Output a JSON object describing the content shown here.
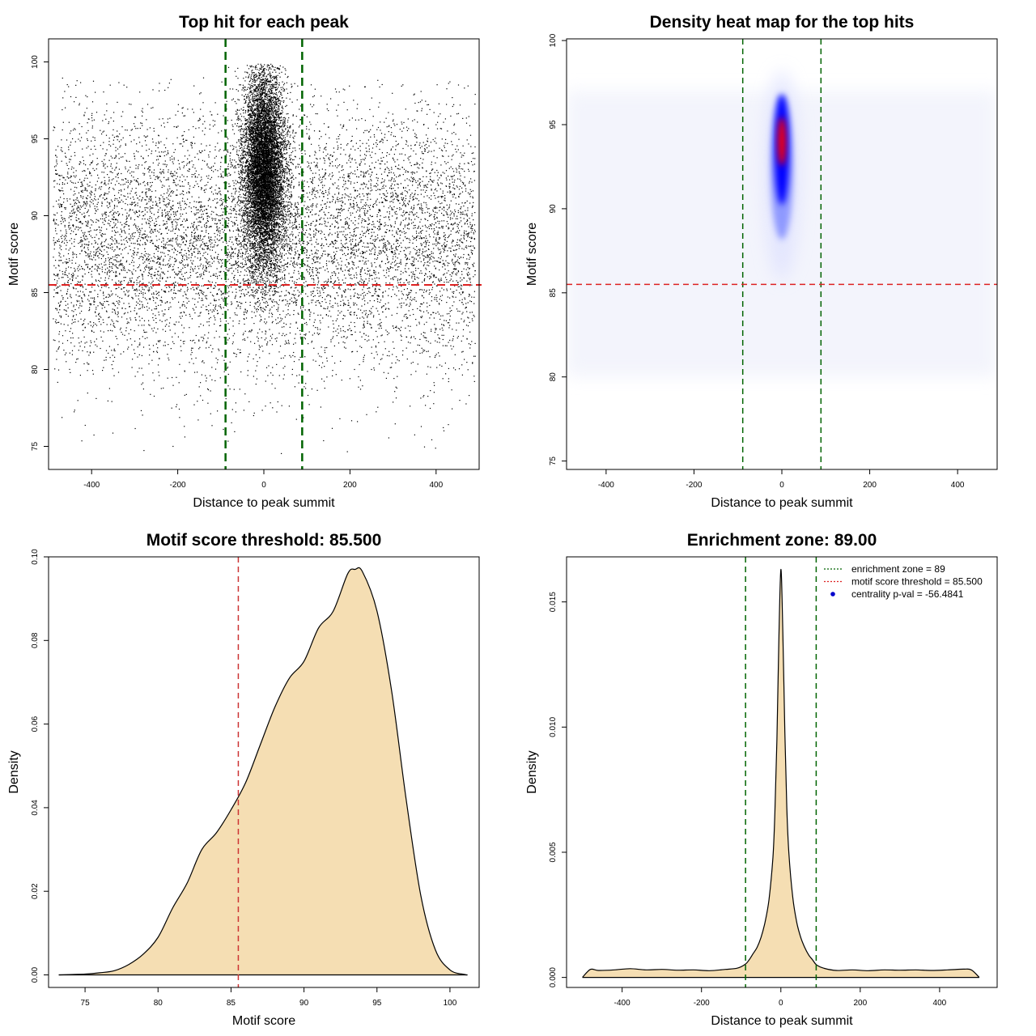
{
  "chart_data": [
    {
      "type": "scatter",
      "title": "Top hit for each peak",
      "xlabel": "Distance to peak summit",
      "ylabel": "Motif score",
      "xlim": [
        -500,
        500
      ],
      "ylim": [
        73.5,
        101.5
      ],
      "xticks": [
        -400,
        -200,
        0,
        200,
        400
      ],
      "yticks": [
        75,
        80,
        85,
        90,
        95,
        100
      ],
      "xtick_labels": [
        "-400",
        "-200",
        "0",
        "200",
        "400"
      ],
      "ytick_labels": [
        "75",
        "80",
        "85",
        "90",
        "95",
        "100"
      ],
      "enrichment_zone_lines": [
        -89,
        89
      ],
      "score_threshold_line": 85.5,
      "point_color": "#000000",
      "vline_color": "#006400",
      "hline_color": "#dd2222",
      "points_description": "Uniform background of top hits across -490..490 with scores ~78-99; dense cluster centred at 0 (within ~±90) with scores ~84-100"
    },
    {
      "type": "heatmap",
      "title": "Density heat map for the top hits",
      "xlabel": "Distance to peak summit",
      "ylabel": "Motif score",
      "xlim": [
        -490,
        490
      ],
      "ylim": [
        74.5,
        100.1
      ],
      "xticks": [
        -400,
        -200,
        0,
        200,
        400
      ],
      "yticks": [
        75,
        80,
        85,
        90,
        95,
        100
      ],
      "xtick_labels": [
        "-400",
        "-200",
        "0",
        "200",
        "400"
      ],
      "ytick_labels": [
        "75",
        "80",
        "85",
        "90",
        "95",
        "100"
      ],
      "enrichment_zone_lines": [
        -89,
        89
      ],
      "score_threshold_line": 85.5,
      "hotspot": {
        "x": 0,
        "y": 94,
        "peak_color": "#ff0000",
        "mid_color": "#0000ff",
        "low_color": "#ffffff"
      },
      "vline_color": "#006400",
      "hline_color": "#dd2222"
    },
    {
      "type": "area",
      "title": "Motif score threshold: 85.500",
      "xlabel": "Motif score",
      "ylabel": "Density",
      "xlim": [
        72.5,
        102
      ],
      "ylim": [
        -0.003,
        0.1
      ],
      "xticks": [
        75,
        80,
        85,
        90,
        95,
        100
      ],
      "yticks": [
        0.0,
        0.02,
        0.04,
        0.06,
        0.08,
        0.1
      ],
      "xtick_labels": [
        "75",
        "80",
        "85",
        "90",
        "95",
        "100"
      ],
      "ytick_labels": [
        "0.00",
        "0.02",
        "0.04",
        "0.06",
        "0.08",
        "0.10"
      ],
      "x": [
        73.2,
        75,
        76,
        77,
        78,
        79,
        80,
        81,
        82,
        83,
        84,
        85,
        86,
        87,
        88,
        89,
        90,
        91,
        92,
        93,
        93.5,
        94,
        95,
        96,
        97,
        98,
        99,
        100,
        101,
        101.2
      ],
      "y": [
        0.0,
        0.0002,
        0.0005,
        0.001,
        0.0025,
        0.005,
        0.009,
        0.016,
        0.022,
        0.03,
        0.034,
        0.0395,
        0.046,
        0.055,
        0.064,
        0.071,
        0.075,
        0.083,
        0.087,
        0.096,
        0.097,
        0.0965,
        0.087,
        0.068,
        0.042,
        0.019,
        0.006,
        0.0012,
        0.0001,
        0.0
      ],
      "threshold_line": 85.5,
      "fill_color": "#f5deb3",
      "line_color": "#000000",
      "vline_color": "#cc3333"
    },
    {
      "type": "area",
      "title": "Enrichment zone: 89.00",
      "xlabel": "Distance to peak summit",
      "ylabel": "Density",
      "xlim": [
        -540,
        545
      ],
      "ylim": [
        -0.0004,
        0.0168
      ],
      "xticks": [
        -400,
        -200,
        0,
        200,
        400
      ],
      "yticks": [
        0.0,
        0.005,
        0.01,
        0.015
      ],
      "xtick_labels": [
        "-400",
        "-200",
        "0",
        "200",
        "400"
      ],
      "ytick_labels": [
        "0.000",
        "0.005",
        "0.010",
        "0.015"
      ],
      "x": [
        -500,
        -480,
        -460,
        -420,
        -380,
        -340,
        -300,
        -260,
        -220,
        -180,
        -140,
        -110,
        -90,
        -80,
        -70,
        -60,
        -50,
        -40,
        -30,
        -20,
        -15,
        -10,
        -5,
        0,
        5,
        10,
        15,
        20,
        30,
        40,
        50,
        60,
        70,
        80,
        90,
        110,
        140,
        180,
        220,
        260,
        300,
        340,
        380,
        420,
        460,
        480,
        500
      ],
      "y": [
        0.0,
        0.00032,
        0.00028,
        0.0003,
        0.00035,
        0.0003,
        0.00032,
        0.00029,
        0.0003,
        0.00027,
        0.00032,
        0.00037,
        0.00052,
        0.0007,
        0.00095,
        0.0012,
        0.0016,
        0.0022,
        0.0031,
        0.0048,
        0.0066,
        0.0095,
        0.0135,
        0.0163,
        0.0138,
        0.0098,
        0.0068,
        0.005,
        0.0032,
        0.0022,
        0.0016,
        0.0012,
        0.0009,
        0.0007,
        0.0005,
        0.00036,
        0.00028,
        0.0003,
        0.00027,
        0.0003,
        0.00029,
        0.0003,
        0.00028,
        0.0003,
        0.00033,
        0.0003,
        0.0
      ],
      "enrichment_zone_lines": [
        -89,
        89
      ],
      "fill_color": "#f5deb3",
      "line_color": "#000000",
      "vline_color": "#006400",
      "legend": [
        {
          "label": "enrichment zone = 89",
          "style": "dotted",
          "color": "#006400"
        },
        {
          "label": "motif score threshold = 85.500",
          "style": "dotted",
          "color": "#dd2222"
        },
        {
          "label": "centrality p-val = -56.4841",
          "style": "point",
          "color": "#0000cc"
        }
      ],
      "legend_position": "top-right"
    }
  ]
}
